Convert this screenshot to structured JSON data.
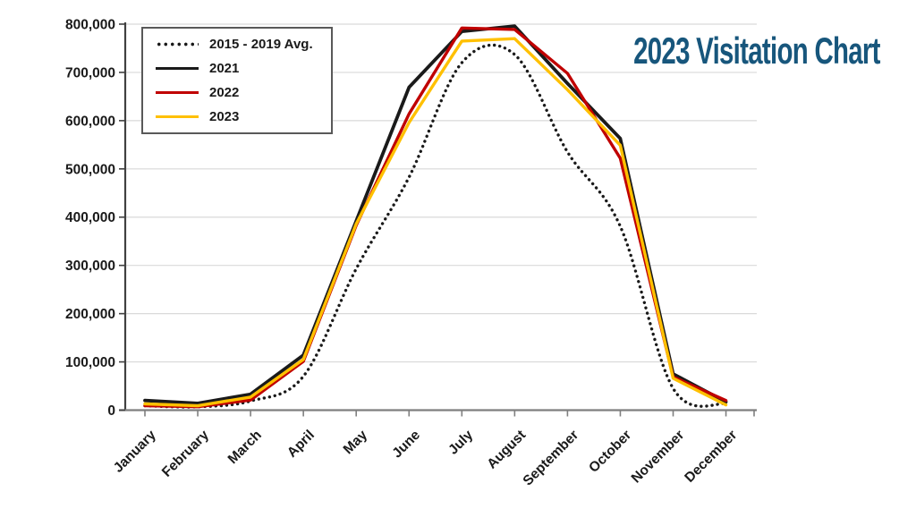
{
  "header": {
    "title": "2023 Visitation Chart",
    "title_color": "#17567C"
  },
  "legend": {
    "position": "top-left",
    "items": [
      {
        "label": "2015 - 2019 Avg.",
        "color": "#1a1a1a",
        "line_style": "dotted"
      },
      {
        "label": "2021",
        "color": "#1a1a1a",
        "line_style": "solid"
      },
      {
        "label": "2022",
        "color": "#C00000",
        "line_style": "solid"
      },
      {
        "label": "2023",
        "color": "#FFC000",
        "line_style": "solid"
      }
    ]
  },
  "chart_data": {
    "type": "line",
    "title": "2023 Visitation Chart",
    "xlabel": "",
    "ylabel": "",
    "categories": [
      "January",
      "February",
      "March",
      "April",
      "May",
      "June",
      "July",
      "August",
      "September",
      "October",
      "November",
      "December"
    ],
    "series": [
      {
        "name": "2015 - 2019 Avg.",
        "color": "#1a1a1a",
        "style": "dotted",
        "smooth": true,
        "values": [
          9000,
          7000,
          19000,
          70000,
          293000,
          483000,
          720000,
          737000,
          535000,
          381000,
          45000,
          13000
        ]
      },
      {
        "name": "2021",
        "color": "#1a1a1a",
        "style": "solid",
        "smooth": false,
        "values": [
          20000,
          14000,
          33000,
          114000,
          392000,
          669000,
          785000,
          796000,
          677000,
          563000,
          75000,
          17000
        ]
      },
      {
        "name": "2022",
        "color": "#C00000",
        "style": "solid",
        "smooth": false,
        "values": [
          9000,
          7000,
          21000,
          101000,
          383000,
          614000,
          792000,
          789000,
          698000,
          522000,
          69000,
          20000
        ]
      },
      {
        "name": "2023",
        "color": "#FFC000",
        "style": "solid",
        "smooth": false,
        "values": [
          13000,
          9000,
          27000,
          105000,
          386000,
          596000,
          765000,
          770000,
          664000,
          549000,
          66000,
          11000
        ]
      }
    ],
    "ylim": [
      0,
      800000
    ],
    "ytick_step": 100000,
    "ytick_labels": [
      "0",
      "100,000",
      "200,000",
      "300,000",
      "400,000",
      "500,000",
      "600,000",
      "700,000",
      "800,000"
    ],
    "grid": true,
    "gridline_color": "#d9d9d9",
    "axis_color": "#595959",
    "label_color": "#1a1a1a",
    "legend_position": "top-left"
  }
}
